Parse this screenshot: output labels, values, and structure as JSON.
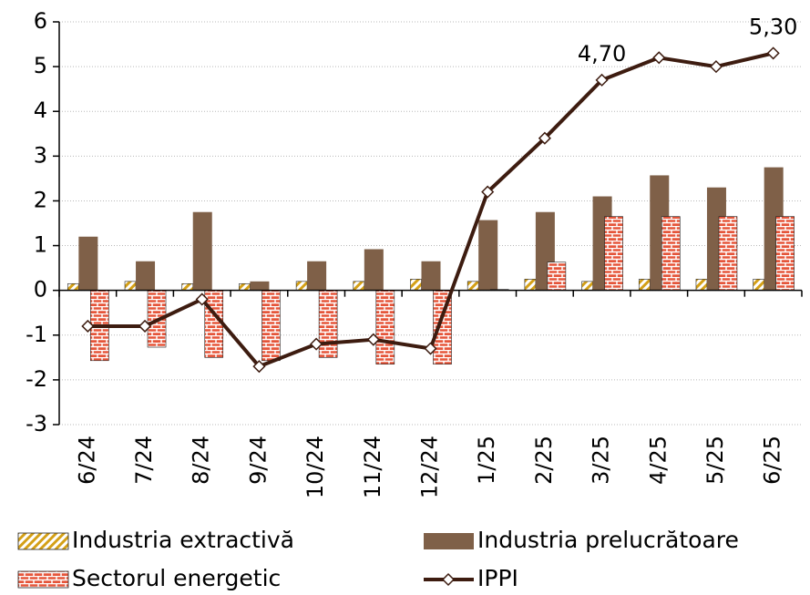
{
  "chart_data": {
    "type": "bar",
    "categories": [
      "6/24",
      "7/24",
      "8/24",
      "9/24",
      "10/24",
      "11/24",
      "12/24",
      "1/25",
      "2/25",
      "3/25",
      "4/25",
      "5/25",
      "6/25"
    ],
    "series": [
      {
        "name": "Industria extractivă",
        "type": "bar",
        "color": "#d4a017",
        "pattern": "hatch",
        "values": [
          0.15,
          0.2,
          0.15,
          0.15,
          0.2,
          0.2,
          0.25,
          0.2,
          0.25,
          0.2,
          0.25,
          0.25,
          0.25
        ]
      },
      {
        "name": "Industria prelucrătoare",
        "type": "bar",
        "color": "#7f6048",
        "pattern": "solid",
        "values": [
          1.2,
          0.65,
          1.75,
          0.2,
          0.65,
          0.92,
          0.65,
          1.57,
          1.75,
          2.1,
          2.57,
          2.3,
          2.75
        ]
      },
      {
        "name": "Sectorul energetic",
        "type": "bar",
        "color": "#e5553a",
        "pattern": "brick",
        "values": [
          -1.57,
          -1.27,
          -1.5,
          -1.57,
          -1.5,
          -1.65,
          -1.65,
          0.02,
          0.63,
          1.65,
          1.65,
          1.65,
          1.65
        ]
      },
      {
        "name": "IPPI",
        "type": "line",
        "color": "#3d1c10",
        "values": [
          -0.8,
          -0.8,
          -0.2,
          -1.7,
          -1.2,
          -1.1,
          -1.3,
          2.2,
          3.4,
          4.7,
          5.2,
          5.0,
          5.3
        ],
        "value_labels": [
          null,
          null,
          null,
          null,
          null,
          null,
          null,
          null,
          null,
          "4,70",
          null,
          null,
          "5,30"
        ]
      }
    ],
    "ylim": [
      -3,
      6
    ],
    "yticks": [
      -3,
      -2,
      -1,
      0,
      1,
      2,
      3,
      4,
      5,
      6
    ],
    "grid": true,
    "legend": "bottom"
  }
}
